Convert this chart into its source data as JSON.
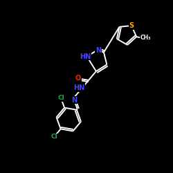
{
  "bg_color": "#000000",
  "bond_color": "#ffffff",
  "atom_colors": {
    "N": "#4444ff",
    "O": "#ff2200",
    "S": "#ffaa00",
    "Cl": "#00bb44",
    "C": "#ffffff",
    "H": "#ffffff"
  },
  "figsize": [
    2.5,
    2.5
  ],
  "dpi": 100,
  "xlim": [
    0,
    10
  ],
  "ylim": [
    0,
    10
  ]
}
